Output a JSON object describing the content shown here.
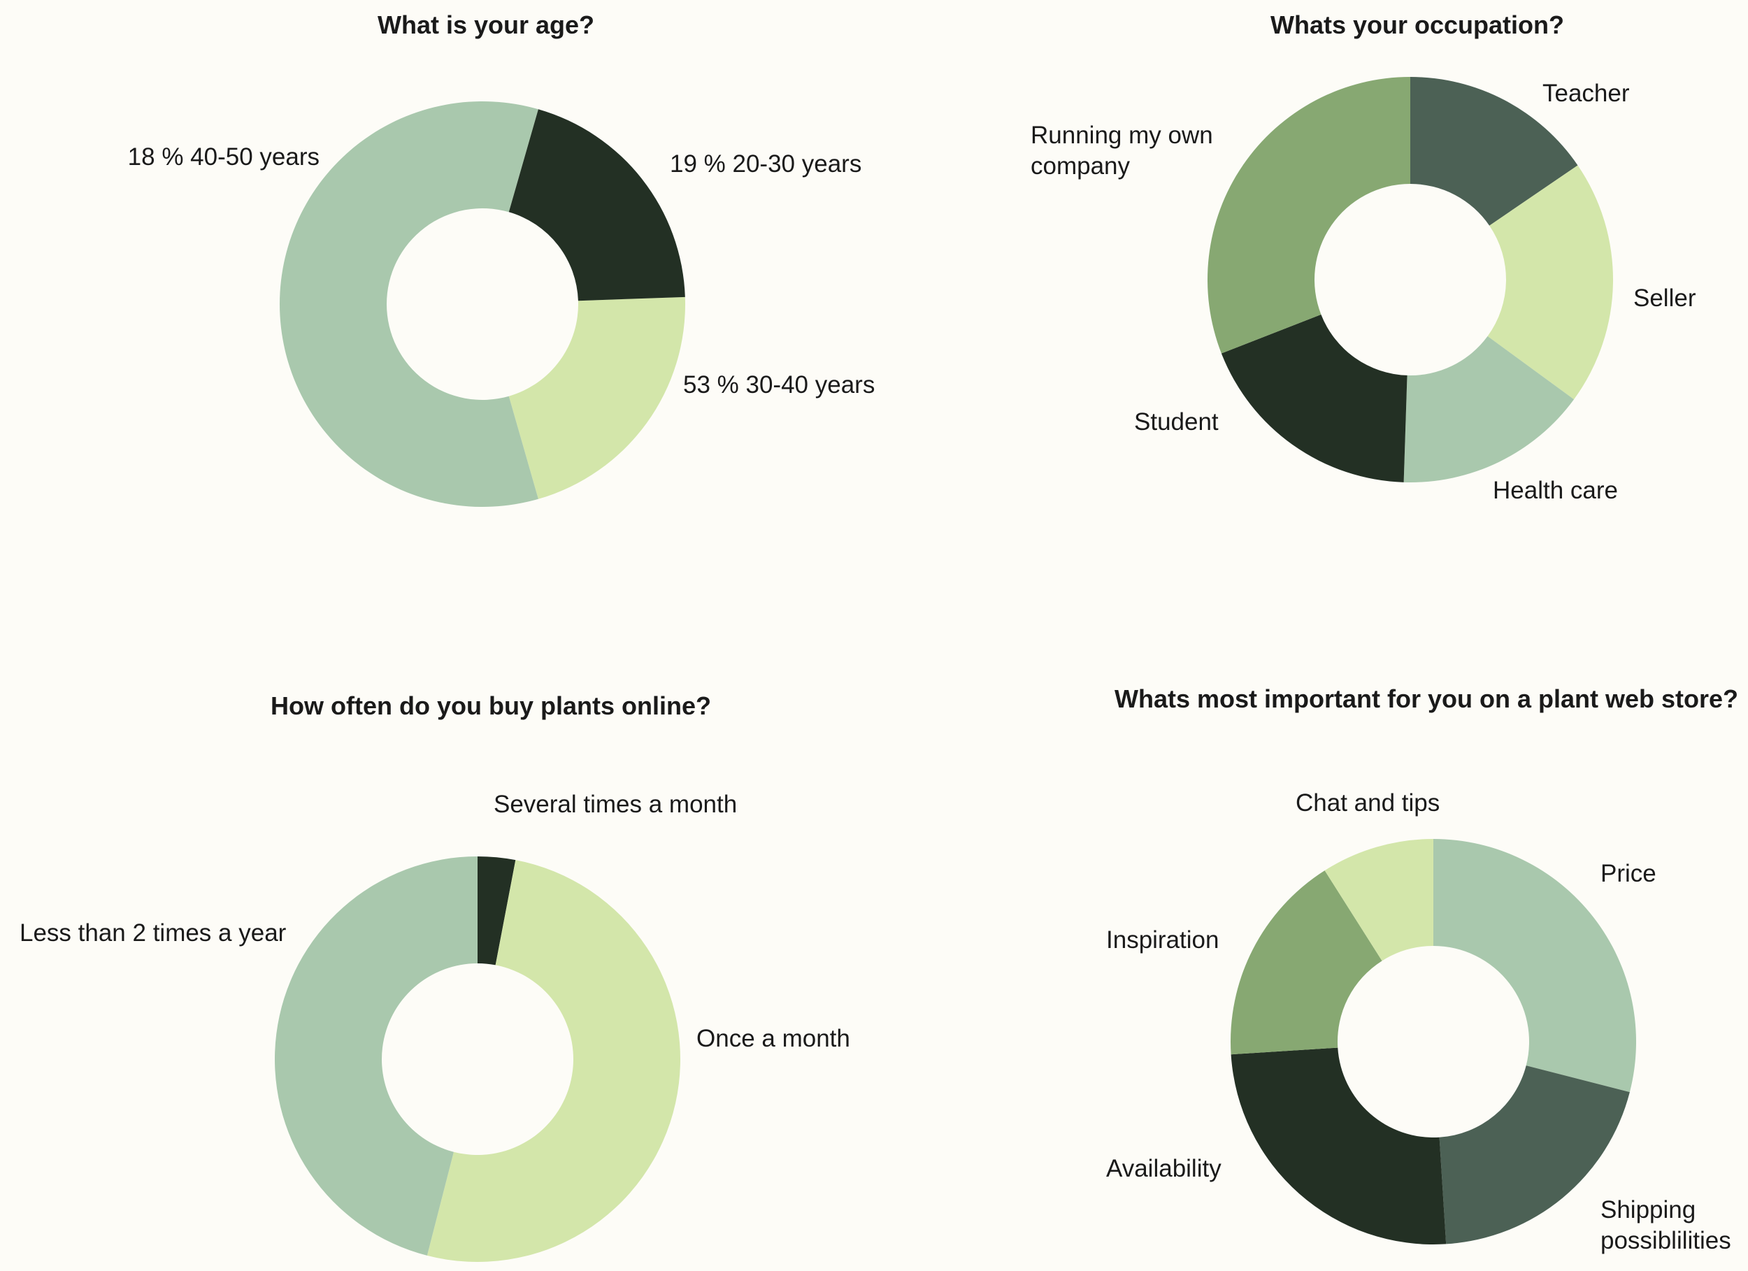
{
  "chart_data": [
    {
      "type": "pie",
      "title": "What is your age?",
      "categories": [
        "19 % 20-30 years",
        "53 % 30-40 years",
        "18 % 40-50 years"
      ],
      "values": [
        19,
        53,
        18
      ],
      "colors": [
        "#d3e6aa",
        "#a9c8ad",
        "#233024"
      ],
      "legend": "none"
    },
    {
      "type": "pie",
      "title": "Whats your occupation?",
      "categories": [
        "Teacher",
        "Seller",
        "Health care",
        "Student",
        "Running my own company"
      ],
      "values": [
        15,
        19,
        15,
        18,
        30
      ],
      "colors": [
        "#4c6155",
        "#d3e6aa",
        "#a9c8ad",
        "#233024",
        "#87a872"
      ],
      "legend": "none"
    },
    {
      "type": "pie",
      "title": "How often do you buy plants online?",
      "categories": [
        "Several times a month",
        "Once a month",
        "Less than 2 times a year"
      ],
      "values": [
        3,
        51,
        46
      ],
      "colors": [
        "#233024",
        "#d3e6aa",
        "#a9c8ad"
      ],
      "legend": "none"
    },
    {
      "type": "pie",
      "title": "Whats most important for you on a plant web store?",
      "categories": [
        "Price",
        "Shipping possiblilities",
        "Availability",
        "Inspiration",
        "Chat and tips"
      ],
      "values": [
        29,
        20,
        25,
        17,
        9
      ],
      "colors": [
        "#a9c8ad",
        "#4c6155",
        "#233024",
        "#87a872",
        "#d3e6aa"
      ],
      "legend": "none"
    }
  ]
}
